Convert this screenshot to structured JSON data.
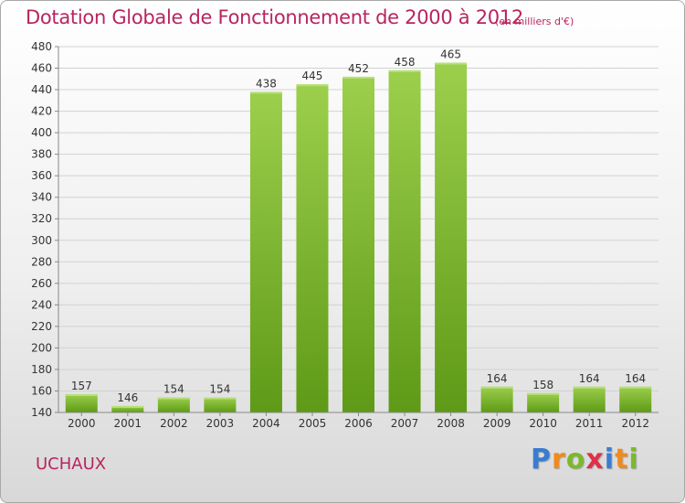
{
  "header": {
    "title": "Dotation Globale de Fonctionnement de 2000 à 2012",
    "unit": "(en milliers d'€)"
  },
  "footer": {
    "commune": "UCHAUX",
    "logo_letters": [
      "P",
      "r",
      "o",
      "x",
      "i",
      "t",
      "i"
    ]
  },
  "colors": {
    "title": "#b8255f",
    "bar_top": "#9ccf4c",
    "bar_bottom": "#5e9a17"
  },
  "chart_data": {
    "type": "bar",
    "title": "Dotation Globale de Fonctionnement de 2000 à 2012",
    "categories": [
      "2000",
      "2001",
      "2002",
      "2003",
      "2004",
      "2005",
      "2006",
      "2007",
      "2008",
      "2009",
      "2010",
      "2011",
      "2012"
    ],
    "values": [
      157,
      146,
      154,
      154,
      438,
      445,
      452,
      458,
      465,
      164,
      158,
      164,
      164
    ],
    "ylim": [
      140,
      480
    ],
    "yticks": [
      140,
      160,
      180,
      200,
      220,
      240,
      260,
      280,
      300,
      320,
      340,
      360,
      380,
      400,
      420,
      440,
      460,
      480
    ],
    "grid": true,
    "xlabel": "",
    "ylabel": ""
  }
}
